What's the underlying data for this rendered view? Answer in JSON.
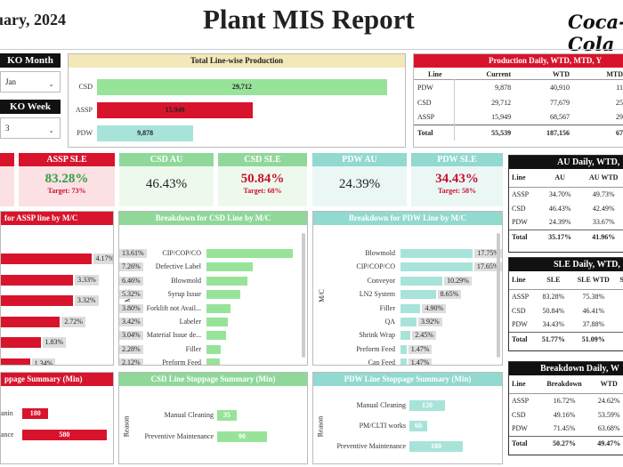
{
  "header": {
    "date": "uary, 2024",
    "title": "Plant MIS Report",
    "logo": "Coca-Cola"
  },
  "slicers": {
    "month": {
      "label": "KO Month",
      "value": "Jan"
    },
    "week": {
      "label": "KO Week",
      "value": "3"
    }
  },
  "total_production": {
    "title": "Total Line-wise Production",
    "colors": {
      "CSD": "#98e39a",
      "ASSP": "#d8142c",
      "PDW": "#a8e3da"
    },
    "rows": [
      {
        "label": "CSD",
        "value": "29,712",
        "num": 29712
      },
      {
        "label": "ASSP",
        "value": "15,949",
        "num": 15949
      },
      {
        "label": "PDW",
        "value": "9,878",
        "num": 9878
      }
    ]
  },
  "prod_table": {
    "title": "Production Daily, WTD, MTD, Y",
    "headers": [
      "Line",
      "Current",
      "WTD",
      "MTD"
    ],
    "rows": [
      [
        "PDW",
        "9,878",
        "40,910",
        "11"
      ],
      [
        "CSD",
        "29,712",
        "77,679",
        "25"
      ],
      [
        "ASSP",
        "15,949",
        "68,567",
        "29"
      ]
    ],
    "total": [
      "Total",
      "55,539",
      "187,156",
      "67"
    ]
  },
  "kpis": [
    {
      "label": "ASSP SLE",
      "value": "83.28%",
      "target": "Target: 73%"
    },
    {
      "label": "CSD AU",
      "value": "46.43%",
      "target": ""
    },
    {
      "label": "CSD SLE",
      "value": "50.84%",
      "target": "Target: 68%"
    },
    {
      "label": "PDW AU",
      "value": "24.39%",
      "target": ""
    },
    {
      "label": "PDW SLE",
      "value": "34.43%",
      "target": "Target: 58%"
    }
  ],
  "au_table": {
    "title": "AU Daily, WTD,",
    "headers": [
      "Line",
      "AU",
      "AU WTD"
    ],
    "rows": [
      [
        "ASSP",
        "34.70%",
        "49.73%"
      ],
      [
        "CSD",
        "46.43%",
        "42.49%"
      ],
      [
        "PDW",
        "24.39%",
        "33.67%"
      ]
    ],
    "total": [
      "Total",
      "35.17%",
      "41.96%"
    ]
  },
  "sle_table": {
    "title": "SLE Daily, WTD,",
    "headers": [
      "Line",
      "SLE",
      "SLE WTD",
      "S"
    ],
    "rows": [
      [
        "ASSP",
        "83.28%",
        "75.38%"
      ],
      [
        "CSD",
        "50.84%",
        "46.41%"
      ],
      [
        "PDW",
        "34.43%",
        "37.88%"
      ]
    ],
    "total": [
      "Total",
      "51.77%",
      "51.09%"
    ]
  },
  "bd_table": {
    "title": "Breakdown Daily, W",
    "headers": [
      "Line",
      "Breakdown",
      "WTD"
    ],
    "rows": [
      [
        "ASSP",
        "16.72%",
        "24.62%"
      ],
      [
        "CSD",
        "49.16%",
        "53.59%"
      ],
      [
        "PDW",
        "71.45%",
        "63.68%"
      ]
    ],
    "total": [
      "Total",
      "50.27%",
      "49.47%"
    ]
  },
  "assp_breakdown": {
    "title": "for ASSP line by M/C",
    "values": [
      {
        "value": "4.17%",
        "num": 4.17
      },
      {
        "value": "3.33%",
        "num": 3.33
      },
      {
        "value": "3.32%",
        "num": 3.32
      },
      {
        "value": "2.72%",
        "num": 2.72
      },
      {
        "value": "1.83%",
        "num": 1.83
      },
      {
        "value": "1.34%",
        "num": 1.34
      }
    ]
  },
  "csd_breakdown": {
    "title": "Breakdown for CSD Line by M/C",
    "axis": "M/C",
    "rows": [
      {
        "label": "CIP/COP/CO",
        "value": "13.61%",
        "num": 13.61
      },
      {
        "label": "Defective Label",
        "value": "7.26%",
        "num": 7.26
      },
      {
        "label": "Blowmold",
        "value": "6.46%",
        "num": 6.46
      },
      {
        "label": "Syrup Issue",
        "value": "5.32%",
        "num": 5.32
      },
      {
        "label": "Forklift not Avail...",
        "value": "3.80%",
        "num": 3.8
      },
      {
        "label": "Labeler",
        "value": "3.42%",
        "num": 3.42
      },
      {
        "label": "Material Issue de...",
        "value": "3.04%",
        "num": 3.04
      },
      {
        "label": "Filler",
        "value": "2.28%",
        "num": 2.28
      },
      {
        "label": "Preform Feed",
        "value": "2.12%",
        "num": 2.12
      }
    ]
  },
  "pdw_breakdown": {
    "title": "Breakdown for PDW Line by M/C",
    "axis": "M/C",
    "rows": [
      {
        "label": "Blowmold",
        "value": "17.75%",
        "num": 17.75
      },
      {
        "label": "CIP/COP/CO",
        "value": "17.65%",
        "num": 17.65
      },
      {
        "label": "Conveyor",
        "value": "10.29%",
        "num": 10.29
      },
      {
        "label": "LN2 System",
        "value": "8.65%",
        "num": 8.65
      },
      {
        "label": "Filler",
        "value": "4.90%",
        "num": 4.9
      },
      {
        "label": "QA",
        "value": "3.92%",
        "num": 3.92
      },
      {
        "label": "Shrink Wrap",
        "value": "2.45%",
        "num": 2.45
      },
      {
        "label": "Preform Feed",
        "value": "1.47%",
        "num": 1.47
      },
      {
        "label": "Cap Feed",
        "value": "1.47%",
        "num": 1.47
      }
    ]
  },
  "assp_stoppage": {
    "title": "ppage Summary (Min)",
    "rows": [
      {
        "label": "aning",
        "value": "180",
        "num": 180
      },
      {
        "label": "ance",
        "value": "580",
        "num": 580
      }
    ]
  },
  "csd_stoppage": {
    "title": "CSD Line Stoppage Summary (Min)",
    "axis": "Reason",
    "rows": [
      {
        "label": "Manual Cleaning",
        "value": "35",
        "num": 35
      },
      {
        "label": "Preventive Maintenance",
        "value": "90",
        "num": 90
      }
    ]
  },
  "pdw_stoppage": {
    "title": "PDW Line Stoppage Summary (Min)",
    "axis": "Reason",
    "rows": [
      {
        "label": "Manual Cleaning",
        "value": "120",
        "num": 120
      },
      {
        "label": "PM/CLTI works",
        "value": "60",
        "num": 60
      },
      {
        "label": "Preventive Maintenance",
        "value": "180",
        "num": 180
      }
    ]
  }
}
